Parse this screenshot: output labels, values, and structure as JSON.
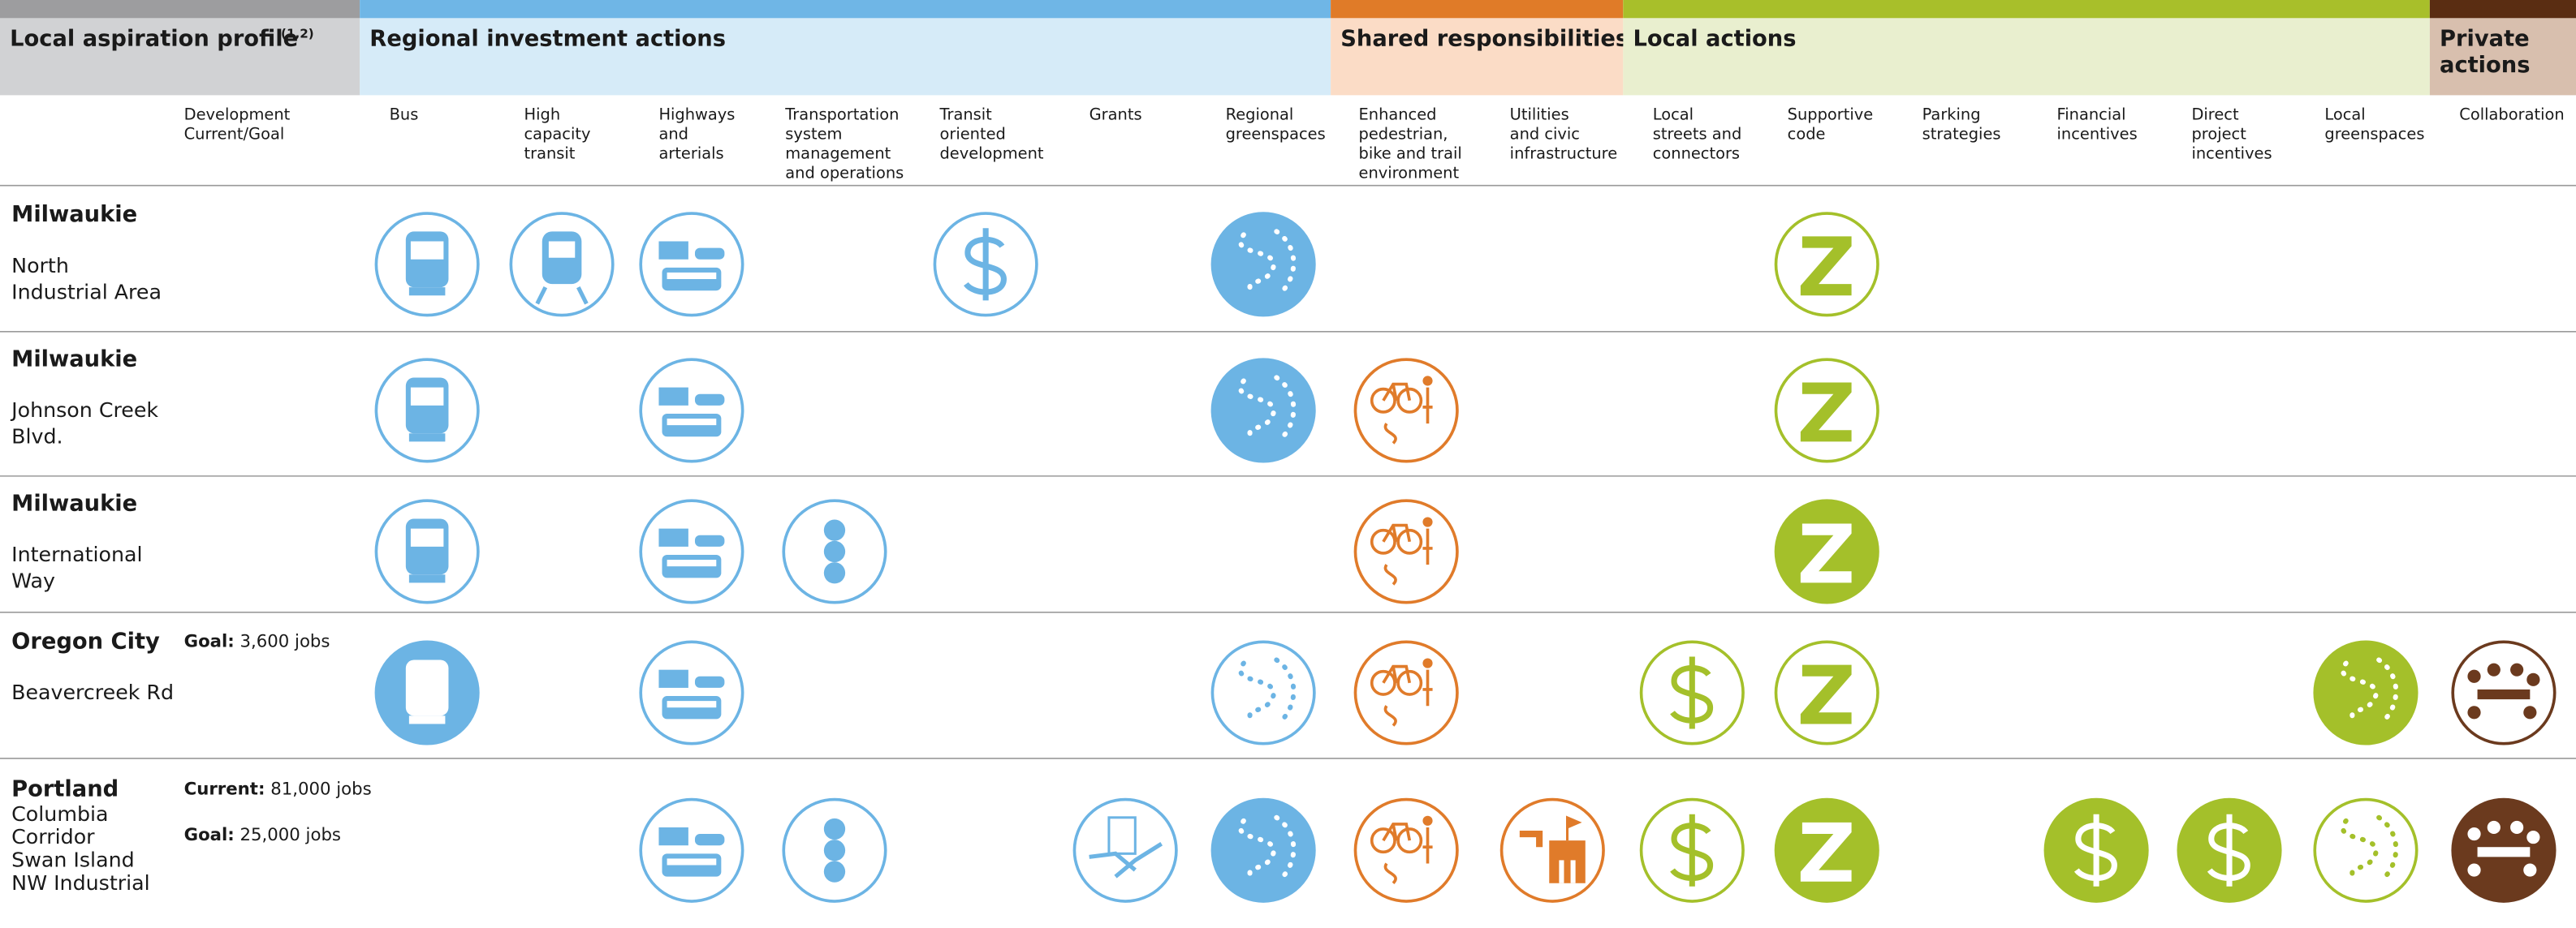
{
  "header": {
    "groups": [
      {
        "title": [
          "Local aspiration profile"
        ],
        "superscript": "(1,2)"
      },
      {
        "title": [
          "Regional investment actions"
        ]
      },
      {
        "title": [
          "Shared responsibilities"
        ]
      },
      {
        "title": [
          "Local actions"
        ]
      },
      {
        "title": [
          "Private",
          "actions"
        ]
      }
    ],
    "columns": [
      [
        "Development",
        "Current/Goal"
      ],
      [
        "Bus"
      ],
      [
        "High",
        "capacity",
        "transit"
      ],
      [
        "Highways",
        "and",
        "arterials"
      ],
      [
        "Transportation",
        "system",
        "management",
        "and operations"
      ],
      [
        "Transit",
        "oriented",
        "development"
      ],
      [
        "Grants"
      ],
      [
        "Regional",
        "greenspaces"
      ],
      [
        "Enhanced",
        "pedestrian,",
        "bike and trail",
        "environment"
      ],
      [
        "Utilities",
        "and civic",
        "infrastructure"
      ],
      [
        "Local",
        "streets and",
        "connectors"
      ],
      [
        "Supportive",
        "code"
      ],
      [
        "Parking",
        "strategies"
      ],
      [
        "Financial",
        "incentives"
      ],
      [
        "Direct",
        "project",
        "incentives"
      ],
      [
        "Local",
        "greenspaces"
      ],
      [
        "Collaboration"
      ]
    ]
  },
  "rows": [
    {
      "city": "Milwaukie",
      "area": [
        "North",
        "Industrial Area"
      ],
      "development": []
    },
    {
      "city": "Milwaukie",
      "area": [
        "Johnson Creek",
        "Blvd."
      ],
      "development": []
    },
    {
      "city": "Milwaukie",
      "area": [
        "International",
        "Way"
      ],
      "development": []
    },
    {
      "city": "Oregon City",
      "area": [
        "Beavercreek Rd"
      ],
      "development": [
        {
          "label": "Goal:",
          "value": "3,600 jobs"
        }
      ]
    },
    {
      "city": "Portland",
      "area": [
        "Columbia",
        "Corridor",
        "Swan Island",
        "NW Industrial"
      ],
      "development": [
        {
          "label": "Current:",
          "value": "81,000 jobs"
        },
        {
          "label": "Goal:",
          "value": "25,000 jobs"
        }
      ]
    }
  ]
}
